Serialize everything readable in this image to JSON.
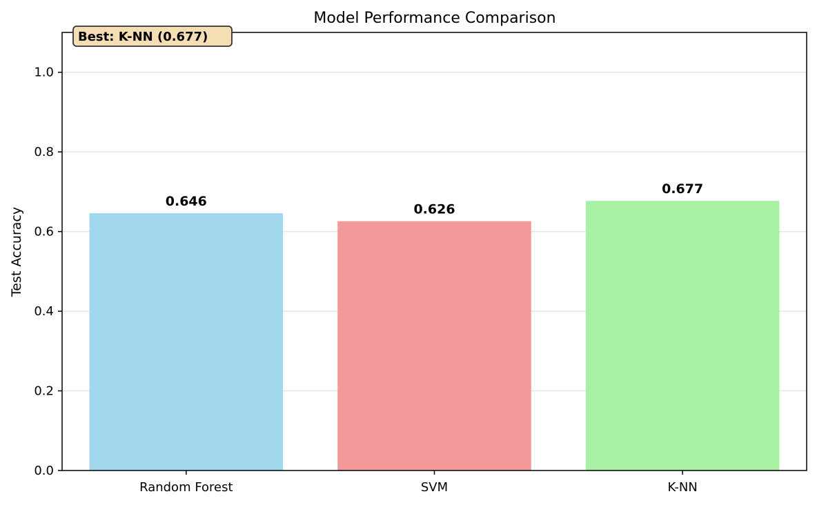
{
  "chart_data": {
    "type": "bar",
    "title": "Model Performance Comparison",
    "xlabel": "",
    "ylabel": "Test Accuracy",
    "categories": [
      "Random Forest",
      "SVM",
      "K-NN"
    ],
    "values": [
      0.646,
      0.626,
      0.677
    ],
    "value_labels": [
      "0.646",
      "0.626",
      "0.677"
    ],
    "bar_colors": [
      "#a0d7ec",
      "#f19a99",
      "#a8f1a4"
    ],
    "ylim": [
      0,
      1.1
    ],
    "yticks": [
      0.0,
      0.2,
      0.4,
      0.6,
      0.8,
      1.0
    ],
    "ytick_labels": [
      "0.0",
      "0.2",
      "0.4",
      "0.6",
      "0.8",
      "1.0"
    ],
    "grid": "horizontal",
    "annotation": {
      "text": "Best: K-NN (0.677)",
      "placement": "top-left",
      "background": "#f5deb3",
      "border": "#333333"
    }
  }
}
